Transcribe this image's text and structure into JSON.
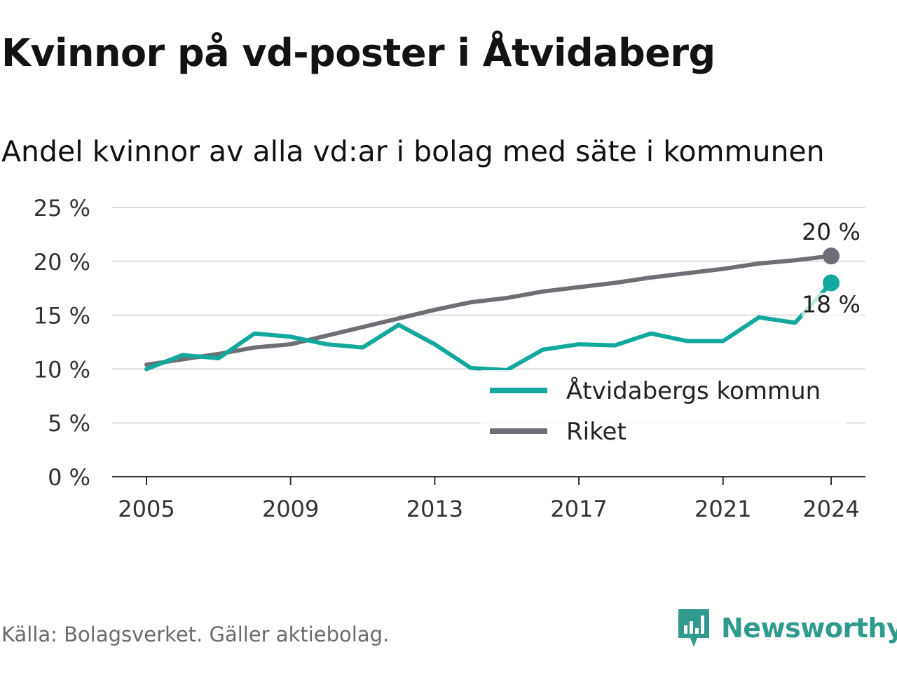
{
  "title": "Kvinnor på vd-poster i Åtvidaberg",
  "subtitle": "Andel kvinnor av alla vd:ar i bolag med säte i kommunen",
  "source": "Källa: Bolagsverket. Gäller aktiebolag.",
  "brand": {
    "name": "Newsworthy",
    "icon": "newsworthy-logo-icon",
    "color": "#2f9a8d"
  },
  "chart_data": {
    "type": "line",
    "x": [
      2005,
      2006,
      2007,
      2008,
      2009,
      2010,
      2011,
      2012,
      2013,
      2014,
      2015,
      2016,
      2017,
      2018,
      2019,
      2020,
      2021,
      2022,
      2023,
      2024
    ],
    "series": [
      {
        "name": "Åtvidabergs kommun",
        "color": "#13a89e",
        "values": [
          10.0,
          11.3,
          11.0,
          13.3,
          13.0,
          12.3,
          12.0,
          14.1,
          12.3,
          10.1,
          9.9,
          11.8,
          12.3,
          12.2,
          13.3,
          12.6,
          12.6,
          14.8,
          14.3,
          18.0
        ],
        "end_label": "18 %"
      },
      {
        "name": "Riket",
        "color": "#6e6e75",
        "values": [
          10.4,
          10.9,
          11.4,
          12.0,
          12.3,
          13.1,
          13.9,
          14.7,
          15.5,
          16.2,
          16.6,
          17.2,
          17.6,
          18.0,
          18.5,
          18.9,
          19.3,
          19.8,
          20.1,
          20.5
        ],
        "end_label": "20 %"
      }
    ],
    "x_ticks": [
      2005,
      2009,
      2013,
      2017,
      2021,
      2024
    ],
    "y_ticks": [
      0,
      5,
      10,
      15,
      20,
      25
    ],
    "y_tick_labels": [
      "0 %",
      "5 %",
      "10 %",
      "15 %",
      "20 %",
      "25 %"
    ],
    "ylim": [
      0,
      25
    ],
    "xlim": [
      2005,
      2024
    ],
    "grid": true,
    "legend_position": "bottom-right"
  }
}
